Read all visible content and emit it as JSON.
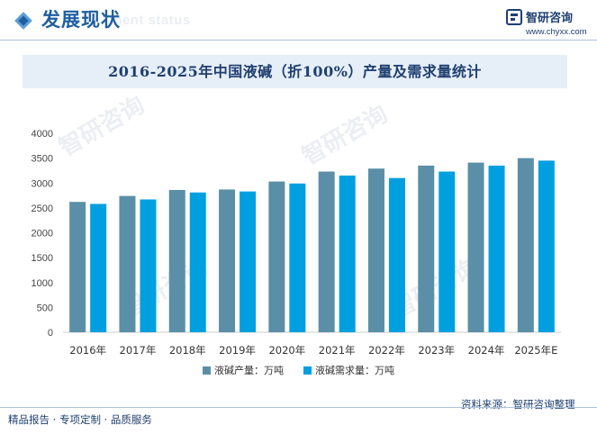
{
  "header": {
    "title": "发展现状",
    "subtitle": "ment status"
  },
  "brand": {
    "name": "智研咨询",
    "url": "www.chyxx.com"
  },
  "chart_data": {
    "type": "bar",
    "title": "2016-2025年中国液碱（折100%）产量及需求量统计",
    "categories": [
      "2016年",
      "2017年",
      "2018年",
      "2019年",
      "2020年",
      "2021年",
      "2022年",
      "2023年",
      "2024年",
      "2025年E"
    ],
    "series": [
      {
        "name": "液碱产量：万吨",
        "color": "#5b8fa8",
        "values": [
          2620,
          2740,
          2860,
          2870,
          3030,
          3230,
          3290,
          3350,
          3410,
          3500
        ]
      },
      {
        "name": "液碱需求量：万吨",
        "color": "#00a0e0",
        "values": [
          2580,
          2670,
          2810,
          2830,
          2990,
          3150,
          3100,
          3230,
          3350,
          3450
        ]
      }
    ],
    "ylim": [
      0,
      4000
    ],
    "yticks": [
      0,
      500,
      1000,
      1500,
      2000,
      2500,
      3000,
      3500,
      4000
    ],
    "grid": false,
    "legend": "bottom"
  },
  "footer": {
    "left": "精品报告 · 专项定制 · 品质服务",
    "source": "资料来源：智研咨询整理"
  }
}
